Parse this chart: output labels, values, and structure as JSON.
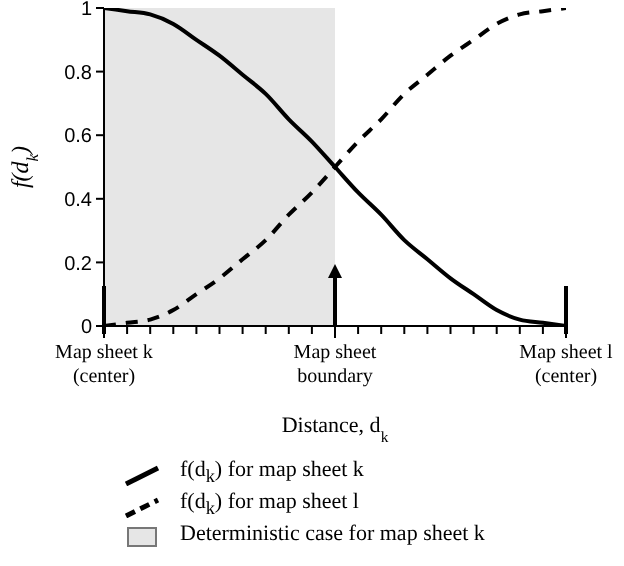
{
  "chart_data": {
    "type": "line",
    "xlabel": "Distance, d$_{k}$",
    "ylabel": "f(d$_{k}$)",
    "categories": [
      "Map sheet k\n(center)",
      null,
      null,
      null,
      null,
      null,
      null,
      null,
      null,
      null,
      "Map sheet\nboundary",
      null,
      null,
      null,
      null,
      null,
      null,
      null,
      null,
      null,
      "Map sheet l\n(center)"
    ],
    "series": [
      {
        "name": "f(d$_{k}$) for map sheet k",
        "color": "#000000",
        "line_style": "solid",
        "values": [
          1,
          0.99,
          0.98,
          0.95,
          0.9,
          0.85,
          0.79,
          0.73,
          0.65,
          0.58,
          0.5,
          0.42,
          0.35,
          0.27,
          0.21,
          0.15,
          0.1,
          0.05,
          0.02,
          0.01,
          0
        ]
      },
      {
        "name": "f(d$_{k}$) for map sheet l",
        "color": "#000000",
        "line_style": "dashed",
        "values": [
          0,
          0.01,
          0.02,
          0.05,
          0.1,
          0.15,
          0.21,
          0.27,
          0.35,
          0.42,
          0.5,
          0.58,
          0.65,
          0.73,
          0.79,
          0.85,
          0.9,
          0.95,
          0.98,
          0.99,
          1
        ]
      }
    ],
    "bands": [
      {
        "axis": "x",
        "from": "Map sheet k\n(center)",
        "to": "Map sheet\nboundary",
        "label": "Deterministic case for map sheet k",
        "color": "#e6e6e6"
      }
    ],
    "ylim": [
      0,
      1
    ],
    "yticks": [
      0,
      0.2,
      0.4,
      0.6,
      0.8,
      1
    ],
    "legend": "bottom",
    "marker": "none"
  }
}
